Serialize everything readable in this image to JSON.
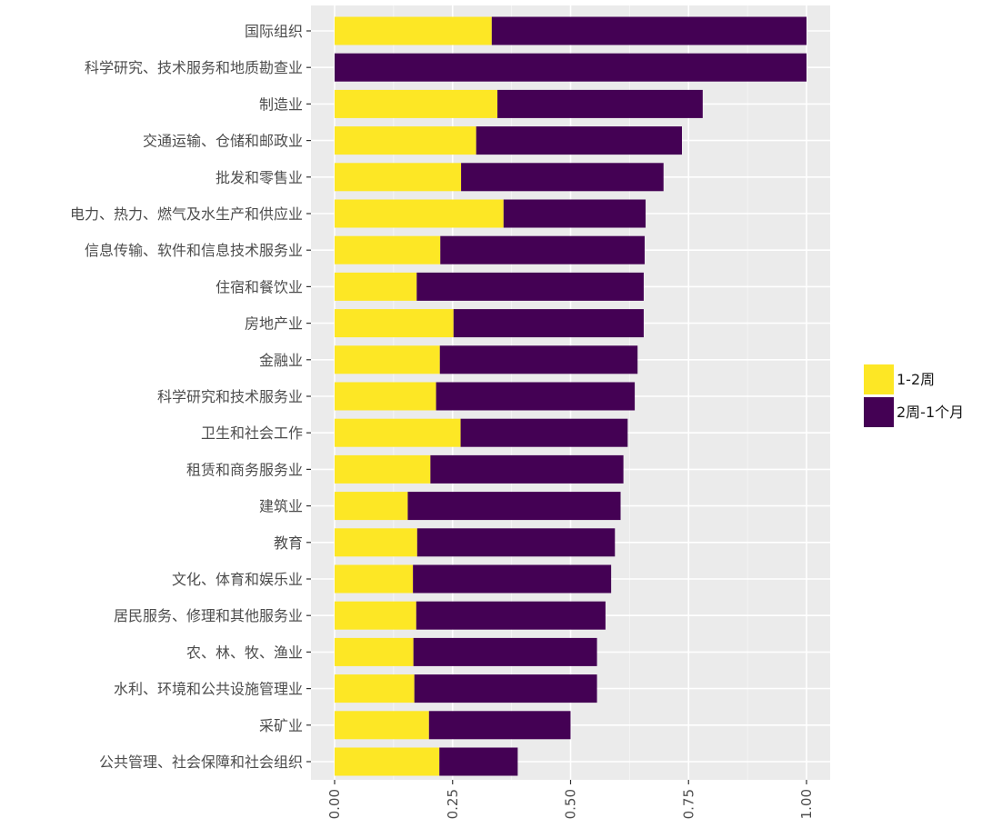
{
  "chart_data": {
    "type": "bar",
    "orientation": "horizontal",
    "stacked": true,
    "title": "",
    "xlabel": "",
    "ylabel": "",
    "xlim": [
      0,
      1
    ],
    "x_ticks": [
      "0.00",
      "0.25",
      "0.50",
      "0.75",
      "1.00"
    ],
    "x_tick_values": [
      0,
      0.25,
      0.5,
      0.75,
      1.0
    ],
    "grid": true,
    "legend_position": "right",
    "categories": [
      "国际组织",
      "科学研究、技术服务和地质勘查业",
      "制造业",
      "交通运输、仓储和邮政业",
      "批发和零售业",
      "电力、热力、燃气及水生产和供应业",
      "信息传输、软件和信息技术服务业",
      "住宿和餐饮业",
      "房地产业",
      "金融业",
      "科学研究和技术服务业",
      "卫生和社会工作",
      "租赁和商务服务业",
      "建筑业",
      "教育",
      "文化、体育和娱乐业",
      "居民服务、修理和其他服务业",
      "农、林、牧、渔业",
      "水利、环境和公共设施管理业",
      "采矿业",
      "公共管理、社会保障和社会组织"
    ],
    "series": [
      {
        "name": "1-2周",
        "color": "#FDE725",
        "values": [
          0.333,
          0.0,
          0.345,
          0.3,
          0.268,
          0.358,
          0.224,
          0.174,
          0.252,
          0.223,
          0.215,
          0.267,
          0.203,
          0.155,
          0.175,
          0.166,
          0.173,
          0.167,
          0.169,
          0.2,
          0.222
        ]
      },
      {
        "name": "2周-1个月",
        "color": "#440154",
        "values": [
          0.667,
          1.0,
          0.435,
          0.436,
          0.429,
          0.301,
          0.433,
          0.481,
          0.403,
          0.419,
          0.421,
          0.354,
          0.409,
          0.451,
          0.419,
          0.42,
          0.401,
          0.389,
          0.387,
          0.3,
          0.166
        ]
      }
    ]
  }
}
